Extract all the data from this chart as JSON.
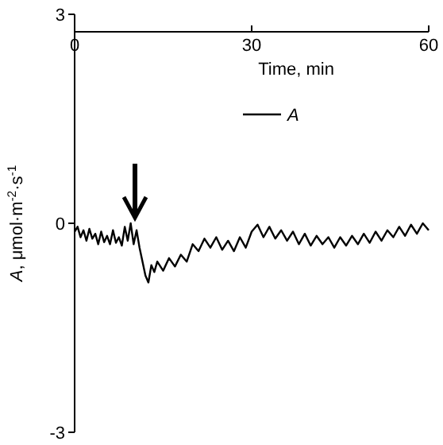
{
  "chart_data": {
    "type": "line",
    "xlabel": "Time, min",
    "ylabel": "A, μmol·m$^{-2}$·s$^{-1}$",
    "xlim": [
      0,
      60
    ],
    "xticks": [
      0,
      30,
      60
    ],
    "ylim": [
      -3,
      3
    ],
    "yticks": [
      -3,
      0,
      3
    ],
    "legend": "right",
    "grid": false,
    "series": [
      {
        "name": "A",
        "color": "#000000",
        "x": [
          0,
          0.5,
          1,
          1.5,
          2,
          2.5,
          3,
          3.5,
          4,
          4.5,
          5,
          5.5,
          6,
          6.5,
          7,
          7.5,
          8,
          8.5,
          9,
          9.5,
          10,
          10.5,
          11,
          11.5,
          12,
          12.5,
          13,
          13.5,
          14,
          15,
          16,
          17,
          18,
          19,
          20,
          21,
          22,
          23,
          24,
          25,
          26,
          27,
          28,
          29,
          30,
          31,
          32,
          33,
          34,
          35,
          36,
          37,
          38,
          39,
          40,
          41,
          42,
          43,
          44,
          45,
          46,
          47,
          48,
          49,
          50,
          51,
          52,
          53,
          54,
          55,
          56,
          57,
          58,
          59,
          60
        ],
        "values": [
          -0.12,
          -0.05,
          -0.2,
          -0.1,
          -0.25,
          -0.08,
          -0.22,
          -0.15,
          -0.3,
          -0.12,
          -0.27,
          -0.18,
          -0.3,
          -0.1,
          -0.28,
          -0.2,
          -0.32,
          -0.05,
          -0.25,
          0.0,
          -0.3,
          -0.1,
          -0.35,
          -0.55,
          -0.75,
          -0.85,
          -0.6,
          -0.7,
          -0.55,
          -0.68,
          -0.5,
          -0.62,
          -0.45,
          -0.55,
          -0.3,
          -0.4,
          -0.22,
          -0.35,
          -0.2,
          -0.38,
          -0.25,
          -0.4,
          -0.2,
          -0.35,
          -0.12,
          -0.02,
          -0.2,
          -0.05,
          -0.22,
          -0.1,
          -0.25,
          -0.12,
          -0.3,
          -0.15,
          -0.32,
          -0.18,
          -0.3,
          -0.2,
          -0.35,
          -0.2,
          -0.32,
          -0.18,
          -0.3,
          -0.15,
          -0.28,
          -0.12,
          -0.25,
          -0.1,
          -0.2,
          -0.05,
          -0.18,
          -0.02,
          -0.15,
          0.0,
          -0.1
        ]
      }
    ]
  }
}
